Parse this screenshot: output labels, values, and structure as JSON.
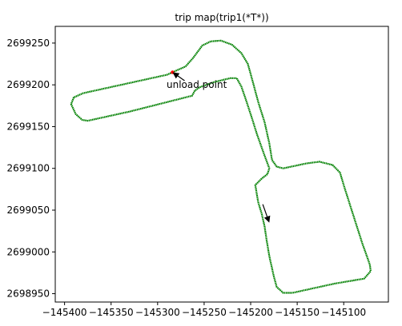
{
  "chart_data": {
    "type": "scatter",
    "title": "trip map(trip1(*T*))",
    "xlabel": "",
    "ylabel": "",
    "xlim": [
      -145410,
      -145052
    ],
    "ylim": [
      2698940,
      2699270
    ],
    "x_ticks": [
      -145400,
      -145350,
      -145300,
      -145250,
      -145200,
      -145150,
      -145100
    ],
    "x_tick_labels": [
      "−145400",
      "−145350",
      "−145300",
      "−145250",
      "−145200",
      "−145150",
      "−145100"
    ],
    "y_ticks": [
      2698950,
      2699000,
      2699050,
      2699100,
      2699150,
      2699200,
      2699250
    ],
    "y_tick_labels": [
      "2698950",
      "2699000",
      "2699050",
      "2699100",
      "2699150",
      "2699200",
      "2699250"
    ],
    "grid": false,
    "legend": "none",
    "colors": {
      "track": "#008000",
      "unload_point": "#ff0000",
      "arrow": "#000000"
    },
    "track": {
      "points": [
        [
          -145284,
          2699215
        ],
        [
          -145270,
          2699222
        ],
        [
          -145262,
          2699232
        ],
        [
          -145252,
          2699247
        ],
        [
          -145243,
          2699252
        ],
        [
          -145232,
          2699253
        ],
        [
          -145220,
          2699248
        ],
        [
          -145210,
          2699238
        ],
        [
          -145203,
          2699225
        ],
        [
          -145198,
          2699205
        ],
        [
          -145192,
          2699180
        ],
        [
          -145185,
          2699155
        ],
        [
          -145180,
          2699130
        ],
        [
          -145177,
          2699110
        ],
        [
          -145172,
          2699102
        ],
        [
          -145165,
          2699100
        ],
        [
          -145140,
          2699106
        ],
        [
          -145126,
          2699108
        ],
        [
          -145112,
          2699104
        ],
        [
          -145104,
          2699095
        ],
        [
          -145100,
          2699080
        ],
        [
          -145090,
          2699045
        ],
        [
          -145080,
          2699010
        ],
        [
          -145072,
          2698985
        ],
        [
          -145071,
          2698977
        ],
        [
          -145078,
          2698968
        ],
        [
          -145110,
          2698962
        ],
        [
          -145155,
          2698951
        ],
        [
          -145165,
          2698951
        ],
        [
          -145172,
          2698958
        ],
        [
          -145175,
          2698970
        ],
        [
          -145180,
          2698995
        ],
        [
          -145183,
          2699015
        ],
        [
          -145185,
          2699030
        ],
        [
          -145188,
          2699045
        ],
        [
          -145192,
          2699060
        ],
        [
          -145195,
          2699080
        ],
        [
          -145188,
          2699088
        ],
        [
          -145182,
          2699093
        ],
        [
          -145180,
          2699100
        ],
        [
          -145185,
          2699115
        ],
        [
          -145193,
          2699140
        ],
        [
          -145200,
          2699165
        ],
        [
          -145206,
          2699185
        ],
        [
          -145210,
          2699198
        ],
        [
          -145215,
          2699208
        ],
        [
          -145222,
          2699208
        ],
        [
          -145240,
          2699203
        ],
        [
          -145255,
          2699197
        ],
        [
          -145260,
          2699193
        ],
        [
          -145263,
          2699187
        ],
        [
          -145270,
          2699185
        ],
        [
          -145330,
          2699168
        ],
        [
          -145375,
          2699157
        ],
        [
          -145381,
          2699158
        ],
        [
          -145388,
          2699165
        ],
        [
          -145393,
          2699177
        ],
        [
          -145390,
          2699185
        ],
        [
          -145380,
          2699190
        ],
        [
          -145290,
          2699212
        ],
        [
          -145284,
          2699215
        ]
      ]
    },
    "arrows": [
      {
        "from": [
          -145187,
          2699057
        ],
        "to": [
          -145180,
          2699035
        ]
      },
      {
        "from": [
          -145271,
          2699205
        ],
        "to": [
          -145284,
          2699215
        ]
      }
    ],
    "unload_point": {
      "x": -145284,
      "y": 2699215
    },
    "annotations": [
      {
        "text": "unload point",
        "x": -145284,
        "y": 2699215
      }
    ]
  }
}
